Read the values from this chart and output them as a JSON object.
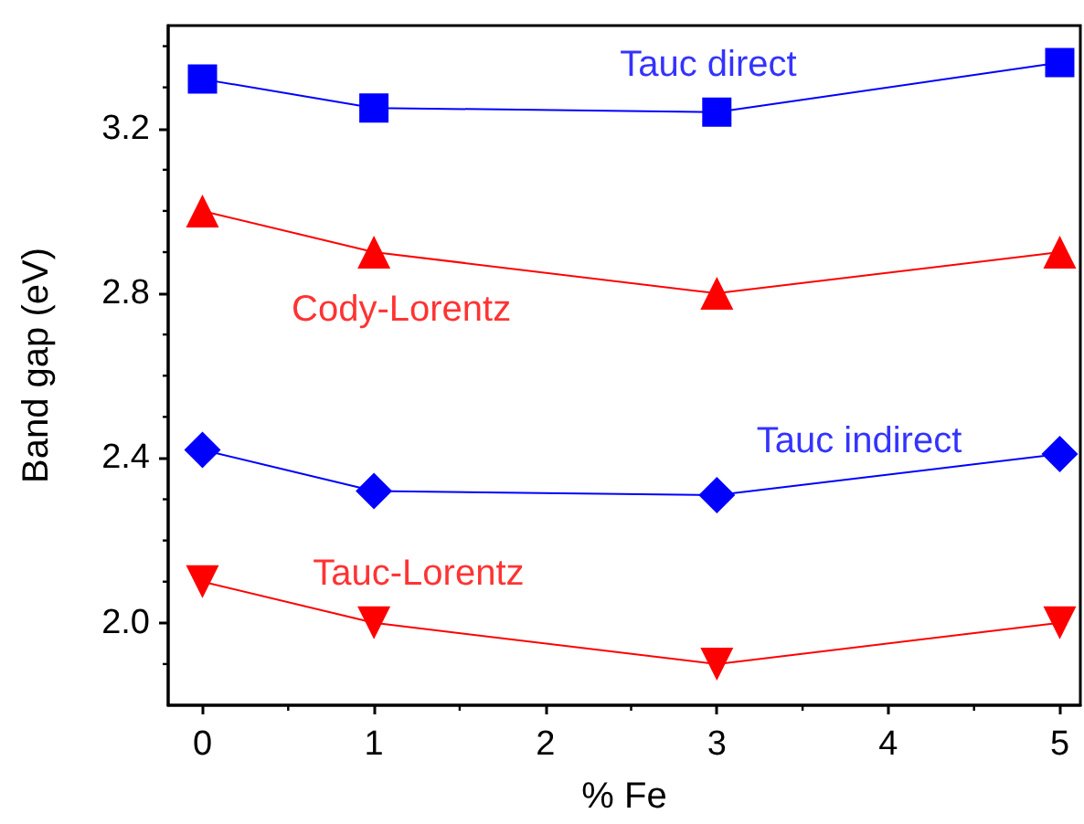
{
  "chart_data": {
    "type": "line",
    "xlabel": "% Fe",
    "ylabel": "Band gap (eV)",
    "x": [
      0,
      1,
      3,
      5
    ],
    "xlim": [
      -0.2,
      5.12
    ],
    "xticks": [
      0,
      1,
      2,
      3,
      4,
      5
    ],
    "ylim": [
      1.8,
      3.45
    ],
    "yticks": [
      {
        "value": 2,
        "label": "2.0"
      },
      2.4,
      2.8,
      3.2
    ],
    "grid": false,
    "legend": false,
    "line_style": "solid",
    "series": [
      {
        "name": "Tauc direct",
        "color": "#0000ff",
        "marker": "square",
        "values": [
          3.32,
          3.25,
          3.24,
          3.36
        ]
      },
      {
        "name": "Cody-Lorentz",
        "color": "#ff0000",
        "marker": "triangle",
        "values": [
          3.0,
          2.9,
          2.8,
          2.9
        ]
      },
      {
        "name": "Tauc indirect",
        "color": "#0000ff",
        "marker": "diamond",
        "values": [
          2.42,
          2.32,
          2.31,
          2.41
        ]
      },
      {
        "name": "Tauc-Lorentz",
        "color": "#ff0000",
        "marker": "triangle-down",
        "values": [
          2.1,
          2.0,
          1.9,
          2.0
        ]
      }
    ]
  }
}
